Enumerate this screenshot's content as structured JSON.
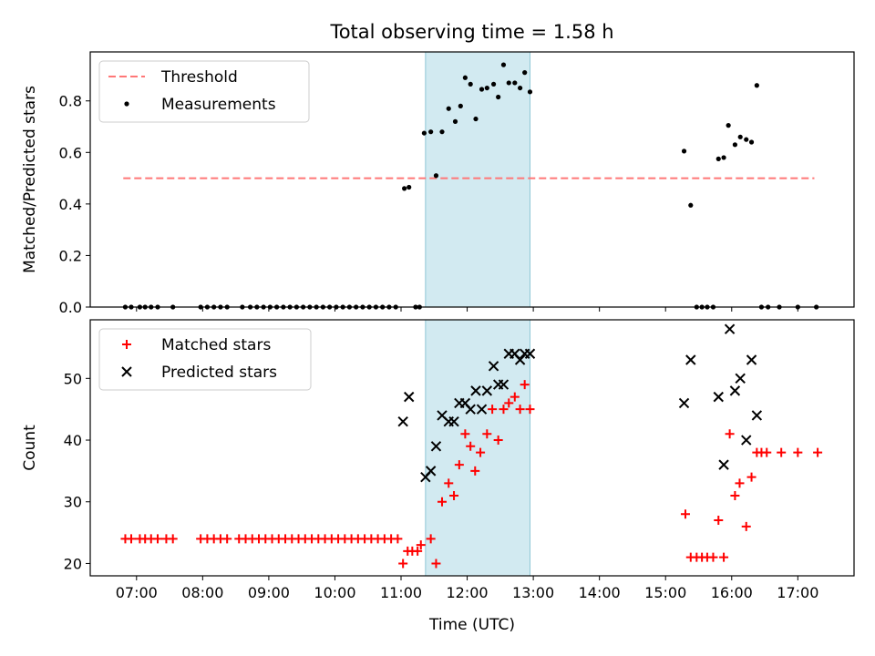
{
  "title": "Total observing time = 1.58 h",
  "xlabel": "Time (UTC)",
  "xticks": [
    {
      "t": 7,
      "label": "07:00"
    },
    {
      "t": 8,
      "label": "08:00"
    },
    {
      "t": 9,
      "label": "09:00"
    },
    {
      "t": 10,
      "label": "10:00"
    },
    {
      "t": 11,
      "label": "11:00"
    },
    {
      "t": 12,
      "label": "12:00"
    },
    {
      "t": 13,
      "label": "13:00"
    },
    {
      "t": 14,
      "label": "14:00"
    },
    {
      "t": 15,
      "label": "15:00"
    },
    {
      "t": 16,
      "label": "16:00"
    },
    {
      "t": 17,
      "label": "17:00"
    }
  ],
  "colors": {
    "threshold": "#ff7777",
    "measurements": "#000000",
    "matched": "#ff0000",
    "predicted": "#000000",
    "span": "#add8e6"
  },
  "chart_data": [
    {
      "type": "scatter",
      "ylabel": "Matched/Predicted stars",
      "xlim": [
        6.3,
        17.85
      ],
      "ylim": [
        0,
        0.99
      ],
      "yticks": [
        0.0,
        0.2,
        0.4,
        0.6,
        0.8
      ],
      "yticklabels": [
        "0.0",
        "0.2",
        "0.4",
        "0.6",
        "0.8"
      ],
      "span": [
        11.37,
        12.95
      ],
      "legend": {
        "placement": "top-left",
        "entries": [
          "Threshold",
          "Measurements"
        ]
      },
      "threshold": {
        "name": "Threshold",
        "y": 0.5,
        "x": [
          6.8,
          17.25
        ]
      },
      "series": [
        {
          "name": "Measurements",
          "points": [
            [
              6.83,
              0
            ],
            [
              6.92,
              0
            ],
            [
              7.05,
              0
            ],
            [
              7.13,
              0
            ],
            [
              7.22,
              0
            ],
            [
              7.32,
              0
            ],
            [
              7.55,
              0
            ],
            [
              7.97,
              0
            ],
            [
              8.07,
              0
            ],
            [
              8.17,
              0
            ],
            [
              8.27,
              0
            ],
            [
              8.37,
              0
            ],
            [
              8.6,
              0
            ],
            [
              8.72,
              0
            ],
            [
              8.82,
              0
            ],
            [
              8.92,
              0
            ],
            [
              9.02,
              0
            ],
            [
              9.12,
              0
            ],
            [
              9.22,
              0
            ],
            [
              9.32,
              0
            ],
            [
              9.42,
              0
            ],
            [
              9.52,
              0
            ],
            [
              9.62,
              0
            ],
            [
              9.72,
              0
            ],
            [
              9.82,
              0
            ],
            [
              9.92,
              0
            ],
            [
              10.02,
              0
            ],
            [
              10.12,
              0
            ],
            [
              10.22,
              0
            ],
            [
              10.32,
              0
            ],
            [
              10.42,
              0
            ],
            [
              10.52,
              0
            ],
            [
              10.62,
              0
            ],
            [
              10.72,
              0
            ],
            [
              10.82,
              0
            ],
            [
              10.92,
              0
            ],
            [
              11.05,
              0.46
            ],
            [
              11.12,
              0.465
            ],
            [
              11.22,
              0
            ],
            [
              11.28,
              0
            ],
            [
              11.35,
              0.675
            ],
            [
              11.45,
              0.68
            ],
            [
              11.53,
              0.51
            ],
            [
              11.62,
              0.68
            ],
            [
              11.72,
              0.77
            ],
            [
              11.82,
              0.72
            ],
            [
              11.9,
              0.78
            ],
            [
              11.97,
              0.89
            ],
            [
              12.05,
              0.865
            ],
            [
              12.13,
              0.73
            ],
            [
              12.22,
              0.845
            ],
            [
              12.3,
              0.85
            ],
            [
              12.4,
              0.865
            ],
            [
              12.47,
              0.815
            ],
            [
              12.55,
              0.94
            ],
            [
              12.63,
              0.87
            ],
            [
              12.72,
              0.87
            ],
            [
              12.8,
              0.85
            ],
            [
              12.87,
              0.91
            ],
            [
              12.95,
              0.835
            ],
            [
              15.28,
              0.605
            ],
            [
              15.38,
              0.395
            ],
            [
              15.47,
              0
            ],
            [
              15.55,
              0
            ],
            [
              15.63,
              0
            ],
            [
              15.72,
              0
            ],
            [
              15.8,
              0.575
            ],
            [
              15.88,
              0.58
            ],
            [
              15.95,
              0.705
            ],
            [
              16.05,
              0.63
            ],
            [
              16.13,
              0.66
            ],
            [
              16.22,
              0.65
            ],
            [
              16.3,
              0.64
            ],
            [
              16.38,
              0.86
            ],
            [
              16.45,
              0
            ],
            [
              16.55,
              0
            ],
            [
              16.72,
              0
            ],
            [
              17.0,
              0
            ],
            [
              17.28,
              0
            ]
          ]
        }
      ]
    },
    {
      "type": "scatter",
      "ylabel": "Count",
      "xlim": [
        6.3,
        17.85
      ],
      "ylim": [
        18,
        59.5
      ],
      "yticks": [
        20,
        30,
        40,
        50
      ],
      "yticklabels": [
        "20",
        "30",
        "40",
        "50"
      ],
      "span": [
        11.37,
        12.95
      ],
      "legend": {
        "placement": "top-left",
        "entries": [
          "Matched stars",
          "Predicted stars"
        ]
      },
      "series": [
        {
          "name": "Matched stars",
          "marker": "plus",
          "points": [
            [
              6.83,
              24
            ],
            [
              6.92,
              24
            ],
            [
              7.05,
              24
            ],
            [
              7.13,
              24
            ],
            [
              7.22,
              24
            ],
            [
              7.32,
              24
            ],
            [
              7.45,
              24
            ],
            [
              7.55,
              24
            ],
            [
              7.97,
              24
            ],
            [
              8.07,
              24
            ],
            [
              8.17,
              24
            ],
            [
              8.27,
              24
            ],
            [
              8.37,
              24
            ],
            [
              8.55,
              24
            ],
            [
              8.65,
              24
            ],
            [
              8.75,
              24
            ],
            [
              8.85,
              24
            ],
            [
              8.95,
              24
            ],
            [
              9.05,
              24
            ],
            [
              9.15,
              24
            ],
            [
              9.25,
              24
            ],
            [
              9.35,
              24
            ],
            [
              9.45,
              24
            ],
            [
              9.55,
              24
            ],
            [
              9.65,
              24
            ],
            [
              9.75,
              24
            ],
            [
              9.85,
              24
            ],
            [
              9.95,
              24
            ],
            [
              10.05,
              24
            ],
            [
              10.15,
              24
            ],
            [
              10.25,
              24
            ],
            [
              10.35,
              24
            ],
            [
              10.45,
              24
            ],
            [
              10.55,
              24
            ],
            [
              10.65,
              24
            ],
            [
              10.75,
              24
            ],
            [
              10.85,
              24
            ],
            [
              10.95,
              24
            ],
            [
              11.03,
              20
            ],
            [
              11.1,
              22
            ],
            [
              11.17,
              22
            ],
            [
              11.25,
              22
            ],
            [
              11.3,
              23
            ],
            [
              11.45,
              24
            ],
            [
              11.53,
              20
            ],
            [
              11.62,
              30
            ],
            [
              11.72,
              33
            ],
            [
              11.8,
              31
            ],
            [
              11.88,
              36
            ],
            [
              11.97,
              41
            ],
            [
              12.05,
              39
            ],
            [
              12.12,
              35
            ],
            [
              12.2,
              38
            ],
            [
              12.3,
              41
            ],
            [
              12.38,
              45
            ],
            [
              12.47,
              40
            ],
            [
              12.55,
              45
            ],
            [
              12.63,
              46
            ],
            [
              12.72,
              47
            ],
            [
              12.8,
              45
            ],
            [
              12.87,
              49
            ],
            [
              12.95,
              45
            ],
            [
              15.3,
              28
            ],
            [
              15.38,
              21
            ],
            [
              15.47,
              21
            ],
            [
              15.55,
              21
            ],
            [
              15.63,
              21
            ],
            [
              15.72,
              21
            ],
            [
              15.8,
              27
            ],
            [
              15.88,
              21
            ],
            [
              15.97,
              41
            ],
            [
              16.05,
              31
            ],
            [
              16.12,
              33
            ],
            [
              16.22,
              26
            ],
            [
              16.3,
              34
            ],
            [
              16.38,
              38
            ],
            [
              16.45,
              38
            ],
            [
              16.53,
              38
            ],
            [
              16.75,
              38
            ],
            [
              17.0,
              38
            ],
            [
              17.3,
              38
            ]
          ]
        },
        {
          "name": "Predicted stars",
          "marker": "x",
          "points": [
            [
              11.03,
              43
            ],
            [
              11.12,
              47
            ],
            [
              11.37,
              34
            ],
            [
              11.45,
              35
            ],
            [
              11.53,
              39
            ],
            [
              11.62,
              44
            ],
            [
              11.72,
              43
            ],
            [
              11.8,
              43
            ],
            [
              11.88,
              46
            ],
            [
              11.97,
              46
            ],
            [
              12.05,
              45
            ],
            [
              12.13,
              48
            ],
            [
              12.22,
              45
            ],
            [
              12.3,
              48
            ],
            [
              12.4,
              52
            ],
            [
              12.47,
              49
            ],
            [
              12.55,
              49
            ],
            [
              12.63,
              54
            ],
            [
              12.72,
              54
            ],
            [
              12.8,
              53
            ],
            [
              12.87,
              54
            ],
            [
              12.95,
              54
            ],
            [
              15.28,
              46
            ],
            [
              15.38,
              53
            ],
            [
              15.8,
              47
            ],
            [
              15.88,
              36
            ],
            [
              15.97,
              58
            ],
            [
              16.05,
              48
            ],
            [
              16.13,
              50
            ],
            [
              16.22,
              40
            ],
            [
              16.3,
              53
            ],
            [
              16.38,
              44
            ]
          ]
        }
      ]
    }
  ]
}
